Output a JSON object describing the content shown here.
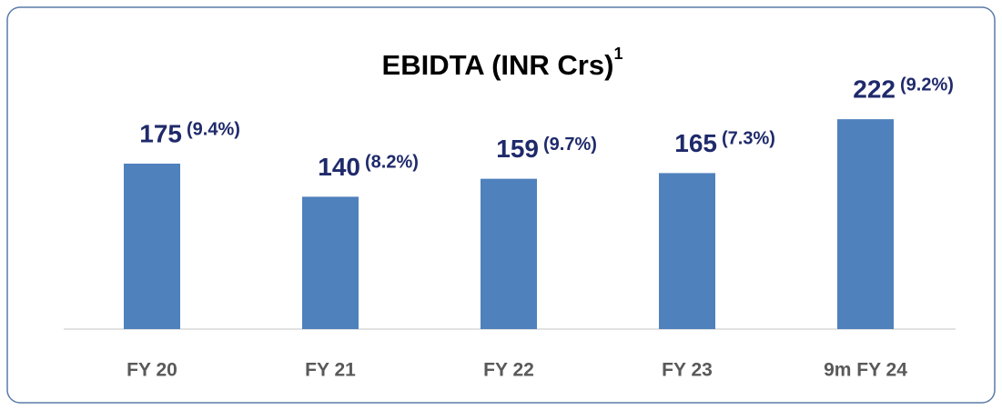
{
  "chart_data": {
    "type": "bar",
    "title": "EBIDTA (INR Crs)",
    "title_superscript": "1",
    "categories": [
      "FY 20",
      "FY 21",
      "FY 22",
      "FY 23",
      "9m FY 24"
    ],
    "values": [
      175,
      140,
      159,
      165,
      222
    ],
    "annotations": [
      "(9.4%)",
      "(8.2%)",
      "(9.7%)",
      "(7.3%)",
      "(9.2%)"
    ],
    "color": "#4f81bd",
    "ylim": [
      0,
      250
    ]
  }
}
